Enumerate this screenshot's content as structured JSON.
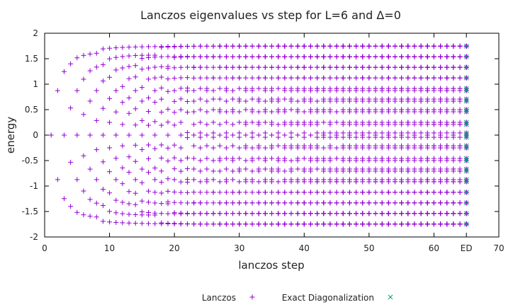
{
  "chart_data": {
    "type": "scatter",
    "title": "Lanczos eigenvalues vs step for L=6 and Δ=0",
    "xlabel": "lanczos step",
    "ylabel": "energy",
    "xlim": [
      0,
      70
    ],
    "ylim": [
      -2,
      2
    ],
    "xticks": [
      "0",
      "10",
      "20",
      "30",
      "40",
      "50",
      "60",
      "ED",
      "70"
    ],
    "yticks": [
      "-2",
      "-1.5",
      "-1",
      "-0.5",
      "0",
      "0.5",
      "1",
      "1.5",
      "2"
    ],
    "grid": false,
    "legend_position": "bottom",
    "steps": [
      1,
      65
    ],
    "ed_x": 65,
    "series": [
      {
        "name": "Lanczos",
        "marker": "+",
        "color": "#9400d3",
        "description_values_note": "eigenvalues of the Lanczos tridiagonal matrix at each step"
      },
      {
        "name": "Exact Diagonalization",
        "marker": "x",
        "color": "#009e73",
        "x": 65,
        "values": [
          -1.7466,
          -1.5388,
          -1.331,
          -1.1231,
          -0.9153,
          -0.874,
          -0.7075,
          -0.6662,
          -0.4997,
          -0.4584,
          -0.2506,
          -0.2097,
          -0.0428,
          0.0,
          0.0428,
          0.2097,
          0.2506,
          0.4584,
          0.4997,
          0.6662,
          0.7075,
          0.874,
          0.9153,
          1.1231,
          1.331,
          1.5388,
          1.7466
        ]
      }
    ]
  }
}
